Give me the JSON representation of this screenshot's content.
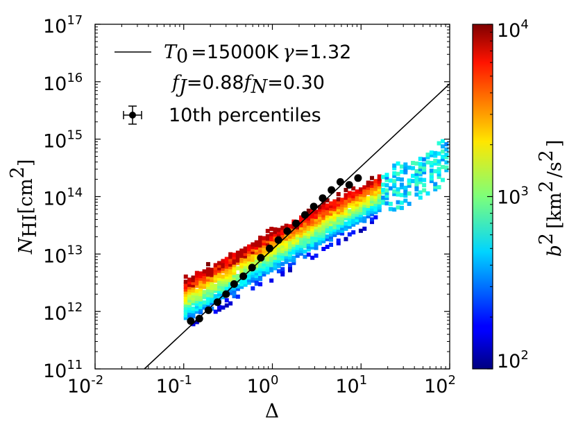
{
  "chart_data": {
    "type": "scatter",
    "xscale": "log",
    "yscale": "log",
    "xlabel": "Δ",
    "ylabel": {
      "main": "N",
      "sub": "HI",
      "unit": "[cm",
      "unit_exp": "2",
      "unit_close": "]"
    },
    "xlim": [
      0.01,
      100
    ],
    "ylim": [
      100000000000.0,
      1e+17
    ],
    "x_ticks": [
      {
        "base": "10",
        "exp": "-2"
      },
      {
        "base": "10",
        "exp": "-1"
      },
      {
        "base": "10",
        "exp": "0"
      },
      {
        "base": "10",
        "exp": "1"
      },
      {
        "base": "10",
        "exp": "2"
      }
    ],
    "y_ticks": [
      {
        "base": "10",
        "exp": "11"
      },
      {
        "base": "10",
        "exp": "12"
      },
      {
        "base": "10",
        "exp": "13"
      },
      {
        "base": "10",
        "exp": "14"
      },
      {
        "base": "10",
        "exp": "15"
      },
      {
        "base": "10",
        "exp": "16"
      },
      {
        "base": "10",
        "exp": "17"
      }
    ],
    "legend": {
      "placement": "top-left",
      "line_label": {
        "t": "T",
        "t_sub": "0",
        "eq": "=15000K",
        "gamma": "γ",
        "gamma_val": "=1.32"
      },
      "line2": {
        "fj": "f",
        "fj_sub": "J",
        "fj_val": "=0.88",
        "fn": "f",
        "fn_sub": "N",
        "fn_val": "=0.30"
      },
      "points_label": "10th percentiles"
    },
    "fit_line": {
      "x": [
        0.036,
        100
      ],
      "y": [
        100000000000.0,
        9200000000000000.0
      ]
    },
    "percentile_points": {
      "x": [
        0.12,
        0.15,
        0.19,
        0.24,
        0.3,
        0.37,
        0.47,
        0.59,
        0.74,
        0.93,
        1.17,
        1.47,
        1.85,
        2.33,
        2.93,
        3.69,
        4.64,
        5.84,
        7.35,
        9.25
      ],
      "y": [
        680000000000.0,
        750000000000.0,
        1050000000000.0,
        1450000000000.0,
        2000000000000.0,
        3000000000000.0,
        4100000000000.0,
        5800000000000.0,
        8600000000000.0,
        12500000000000.0,
        17500000000000.0,
        25000000000000.0,
        34000000000000.0,
        48000000000000.0,
        67000000000000.0,
        94000000000000.0,
        130000000000000.0,
        180000000000000.0,
        160000000000000.0,
        210000000000000.0
      ]
    },
    "colorbar": {
      "label": {
        "b": "b",
        "b_exp": "2",
        "unit": "[km",
        "unit_exp": "2",
        "slash": "/s",
        "s_exp": "2",
        "close": "]"
      },
      "range": [
        100,
        10000
      ],
      "ticks": [
        {
          "base": "10",
          "exp": "2",
          "value": 100
        },
        {
          "base": "10",
          "exp": "3",
          "value": 1000
        },
        {
          "base": "10",
          "exp": "4",
          "value": 10000
        }
      ],
      "colormap": "jet"
    }
  }
}
